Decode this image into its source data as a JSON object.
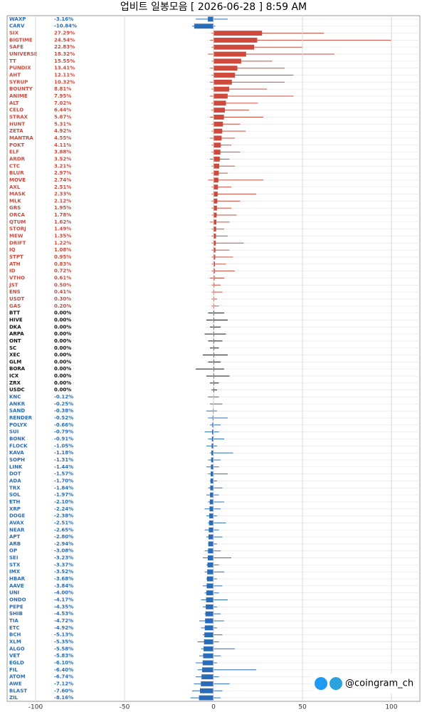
{
  "chart_data": {
    "type": "candle",
    "title": "업비트 일봉모음 [ 2026-06-28 ]  8:59 AM",
    "watermark": "@coingram_ch",
    "categories": [
      "WAXP",
      "CARV",
      "SIX",
      "BIGTIME",
      "SAFE",
      "UNIVERSE",
      "TT",
      "PUNDIX",
      "AHT",
      "SYRUP",
      "BOUNTY",
      "ANIME",
      "ALT",
      "CELO",
      "STRAX",
      "HUNT",
      "ZETA",
      "MANTRA",
      "POKT",
      "ELF",
      "ARDR",
      "CTC",
      "BLUR",
      "MOVE",
      "AXL",
      "MASK",
      "MLK",
      "GRS",
      "ORCA",
      "QTUM",
      "STORJ",
      "MEW",
      "DRIFT",
      "IQ",
      "STPT",
      "ATH",
      "ID",
      "VTHO",
      "JST",
      "ENS",
      "USDT",
      "GAS",
      "BTT",
      "HIVE",
      "DKA",
      "ARPA",
      "ONT",
      "SC",
      "XEC",
      "GLM",
      "BORA",
      "ICX",
      "ZRX",
      "USDC",
      "KNC",
      "ANKR",
      "SAND",
      "RENDER",
      "POLYX",
      "SUI",
      "BONK",
      "FLOCK",
      "KAVA",
      "SOPH",
      "LINK",
      "DOT",
      "ADA",
      "TRX",
      "SOL",
      "ETH",
      "XRP",
      "DOGE",
      "AVAX",
      "NEAR",
      "APT",
      "ARB",
      "OP",
      "SEI",
      "STX",
      "IMX",
      "HBAR",
      "AAVE",
      "UNI",
      "ONDO",
      "PEPE",
      "SHIB",
      "TIA",
      "ETC",
      "BCH",
      "XLM",
      "ALGO",
      "VET",
      "EGLD",
      "FIL",
      "ATOM",
      "AWE",
      "BLAST",
      "ZIL"
    ],
    "values": [
      -3.16,
      -10.84,
      27.29,
      24.54,
      22.83,
      18.32,
      15.55,
      13.41,
      12.11,
      10.32,
      8.81,
      7.95,
      7.02,
      6.44,
      5.87,
      5.31,
      4.92,
      4.55,
      4.11,
      3.88,
      3.52,
      3.21,
      2.97,
      2.74,
      2.51,
      2.33,
      2.12,
      1.95,
      1.78,
      1.62,
      1.49,
      1.35,
      1.22,
      1.08,
      0.95,
      0.83,
      0.72,
      0.61,
      0.5,
      0.41,
      0.3,
      0.2,
      0,
      0,
      0,
      0,
      0,
      0,
      0,
      0,
      0,
      0,
      0,
      0,
      -0.12,
      -0.25,
      -0.38,
      -0.52,
      -0.66,
      -0.79,
      -0.91,
      -1.05,
      -1.18,
      -1.31,
      -1.44,
      -1.57,
      -1.7,
      -1.84,
      -1.97,
      -2.1,
      -2.24,
      -2.38,
      -2.51,
      -2.65,
      -2.8,
      -2.94,
      -3.08,
      -3.23,
      -3.37,
      -3.52,
      -3.68,
      -3.84,
      -4.0,
      -4.17,
      -4.35,
      -4.53,
      -4.72,
      -4.92,
      -5.13,
      -5.35,
      -5.58,
      -5.83,
      -6.1,
      -6.4,
      -6.74,
      -7.12,
      -7.6,
      -8.16
    ],
    "value_labels": [
      "-3.16%",
      "-10.84%",
      "27.29%",
      "24.54%",
      "22.83%",
      "18.32%",
      "15.55%",
      "13.41%",
      "12.11%",
      "10.32%",
      "8.81%",
      "7.95%",
      "7.02%",
      "6.44%",
      "5.87%",
      "5.31%",
      "4.92%",
      "4.55%",
      "4.11%",
      "3.88%",
      "3.52%",
      "3.21%",
      "2.97%",
      "2.74%",
      "2.51%",
      "2.33%",
      "2.12%",
      "1.95%",
      "1.78%",
      "1.62%",
      "1.49%",
      "1.35%",
      "1.22%",
      "1.08%",
      "0.95%",
      "0.83%",
      "0.72%",
      "0.61%",
      "0.50%",
      "0.41%",
      "0.30%",
      "0.20%",
      "0.00%",
      "0.00%",
      "0.00%",
      "0.00%",
      "0.00%",
      "0.00%",
      "0.00%",
      "0.00%",
      "0.00%",
      "0.00%",
      "0.00%",
      "0.00%",
      "-0.12%",
      "-0.25%",
      "-0.38%",
      "-0.52%",
      "-0.66%",
      "-0.79%",
      "-0.91%",
      "-1.05%",
      "-1.18%",
      "-1.31%",
      "-1.44%",
      "-1.57%",
      "-1.70%",
      "-1.84%",
      "-1.97%",
      "-2.10%",
      "-2.24%",
      "-2.38%",
      "-2.51%",
      "-2.65%",
      "-2.80%",
      "-2.94%",
      "-3.08%",
      "-3.23%",
      "-3.37%",
      "-3.52%",
      "-3.68%",
      "-3.84%",
      "-4.00%",
      "-4.17%",
      "-4.35%",
      "-4.53%",
      "-4.72%",
      "-4.92%",
      "-5.13%",
      "-5.35%",
      "-5.58%",
      "-5.83%",
      "-6.10%",
      "-6.40%",
      "-6.74%",
      "-7.12%",
      "-7.60%",
      "-8.16%"
    ],
    "lows": [
      -10,
      -12,
      -1,
      -2,
      -1,
      -3,
      -1,
      -2,
      -1,
      -2,
      -1,
      -2,
      -1,
      -1,
      -2,
      -1,
      -1,
      -2,
      -1,
      -1,
      -2,
      -1,
      -1,
      -3,
      -1,
      -1,
      -1,
      -1,
      -1,
      -2,
      -1,
      -1,
      -1,
      -1,
      -1,
      -1,
      -1,
      -2,
      -1,
      -1,
      -1,
      -1,
      -3,
      -4,
      -2,
      -5,
      -3,
      -2,
      -6,
      -3,
      -10,
      -4,
      -2,
      -1,
      -3,
      -2,
      -4,
      -3,
      -2,
      -5,
      -3,
      -4,
      -2,
      -3,
      -4,
      -3,
      -2,
      -3,
      -4,
      -3,
      -5,
      -4,
      -3,
      -5,
      -4,
      -3,
      -5,
      -6,
      -4,
      -5,
      -4,
      -6,
      -5,
      -7,
      -6,
      -5,
      -8,
      -7,
      -6,
      -9,
      -7,
      -8,
      -10,
      -9,
      -10,
      -11,
      -12,
      -13
    ],
    "highs": [
      8,
      1,
      62,
      100,
      50,
      68,
      33,
      40,
      45,
      40,
      30,
      45,
      25,
      20,
      28,
      15,
      18,
      12,
      10,
      15,
      9,
      12,
      8,
      28,
      10,
      24,
      15,
      10,
      13,
      9,
      6,
      8,
      17,
      9,
      11,
      7,
      12,
      6,
      4,
      5,
      2,
      3,
      6,
      8,
      4,
      7,
      5,
      3,
      8,
      4,
      6,
      9,
      3,
      2,
      3,
      5,
      2,
      8,
      4,
      3,
      6,
      2,
      11,
      4,
      3,
      8,
      2,
      5,
      3,
      6,
      4,
      2,
      7,
      3,
      5,
      2,
      4,
      10,
      3,
      6,
      2,
      5,
      3,
      8,
      2,
      4,
      6,
      2,
      5,
      3,
      12,
      4,
      2,
      24,
      3,
      9,
      5,
      4
    ],
    "up_color": "#cf4a3d",
    "flat_color": "#111111",
    "down_color": "#2b6cb8",
    "xlim": [
      -116,
      116
    ],
    "xticks": [
      -100,
      -50,
      0,
      50,
      100
    ],
    "grid": true
  }
}
